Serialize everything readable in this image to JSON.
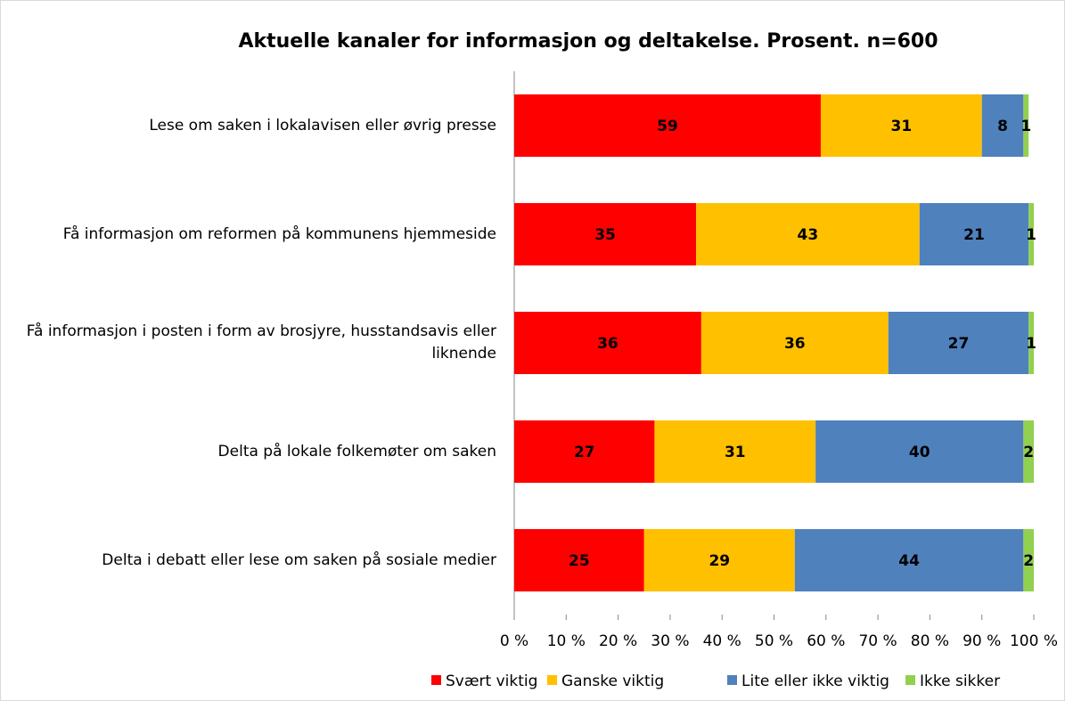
{
  "chart_data": {
    "type": "stacked-barh",
    "title": "Aktuelle kanaler for informasjon og deltakelse. Prosent. n=600",
    "categories": [
      "Lese om saken i lokalavisen eller øvrig presse",
      "Få informasjon om reformen på kommunens hjemmeside",
      "Få informasjon i posten i form av brosjyre, husstandsavis eller liknende",
      "Delta på lokale folkemøter om saken",
      "Delta i debatt eller lese om saken på sosiale medier"
    ],
    "series": [
      {
        "name": "Svært viktig",
        "color": "#ff0000",
        "values": [
          59,
          35,
          36,
          27,
          25
        ]
      },
      {
        "name": "Ganske viktig",
        "color": "#ffc000",
        "values": [
          31,
          43,
          36,
          31,
          29
        ]
      },
      {
        "name": "Lite eller ikke viktig",
        "color": "#4f81bd",
        "values": [
          8,
          21,
          27,
          40,
          44
        ]
      },
      {
        "name": "Ikke sikker",
        "color": "#92d050",
        "values": [
          1,
          1,
          1,
          2,
          2
        ]
      }
    ],
    "xlim": [
      0,
      100
    ],
    "xticks": [
      {
        "value": 0,
        "label": "0 %"
      },
      {
        "value": 10,
        "label": "10 %"
      },
      {
        "value": 20,
        "label": "20 %"
      },
      {
        "value": 30,
        "label": "30 %"
      },
      {
        "value": 40,
        "label": "40 %"
      },
      {
        "value": 50,
        "label": "50 %"
      },
      {
        "value": 60,
        "label": "60 %"
      },
      {
        "value": 70,
        "label": "70 %"
      },
      {
        "value": 80,
        "label": "80 %"
      },
      {
        "value": 90,
        "label": "90 %"
      },
      {
        "value": 100,
        "label": "100 %"
      }
    ],
    "legend": "bottom"
  }
}
